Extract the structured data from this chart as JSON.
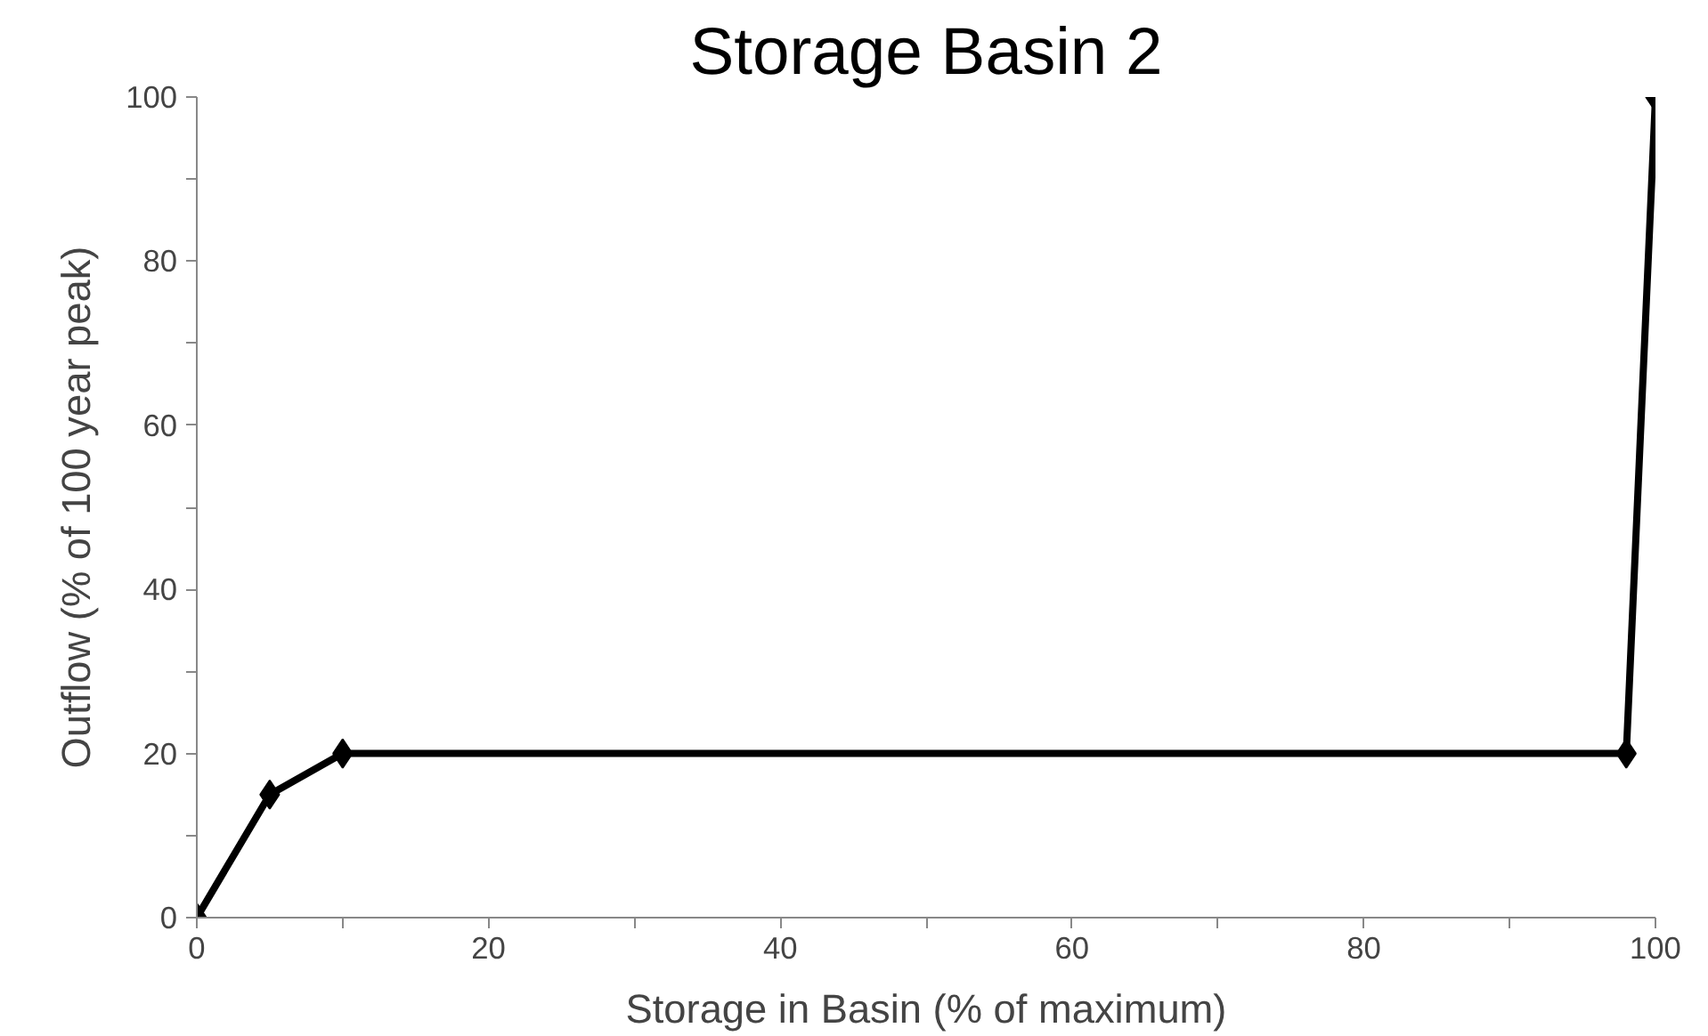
{
  "chart_data": {
    "type": "line",
    "title": "Storage Basin 2",
    "xlabel": "Storage in Basin (% of maximum)",
    "ylabel": "Outflow (% of 100 year peak)",
    "x": [
      0,
      5,
      10,
      98,
      100
    ],
    "series": [
      {
        "color": "#000000",
        "values": [
          0,
          15,
          20,
          20,
          100
        ]
      }
    ],
    "xlim": [
      0,
      100
    ],
    "ylim": [
      0,
      100
    ],
    "xticks": [
      0,
      {
        "value": 10,
        "label": null
      },
      20,
      {
        "value": 30,
        "label": null
      },
      40,
      {
        "value": 50,
        "label": null
      },
      60,
      {
        "value": 70,
        "label": null
      },
      80,
      {
        "value": 90,
        "label": null
      },
      100
    ],
    "yticks": [
      0,
      {
        "value": 10,
        "label": null
      },
      20,
      {
        "value": 30,
        "label": null
      },
      40,
      {
        "value": 50,
        "label": null
      },
      60,
      {
        "value": 70,
        "label": null
      },
      80,
      {
        "value": 90,
        "label": null
      },
      100
    ],
    "marker": "diamond",
    "line_style": "solid",
    "grid": false
  }
}
